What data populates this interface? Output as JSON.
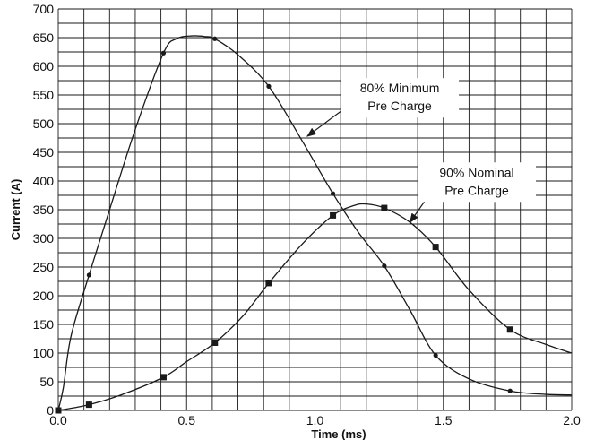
{
  "chart_data": {
    "type": "line",
    "title": "",
    "xlabel": "Time (ms)",
    "ylabel": "Current (A)",
    "xlim": [
      0,
      2.0
    ],
    "ylim": [
      0,
      700
    ],
    "x_ticks": [
      0.0,
      0.5,
      1.0,
      1.5,
      2.0
    ],
    "x_tick_labels": [
      "0.0",
      "0.5",
      "1.0",
      "1.5",
      "2.0"
    ],
    "y_ticks": [
      0,
      50,
      100,
      150,
      200,
      250,
      300,
      350,
      400,
      450,
      500,
      550,
      600,
      650,
      700
    ],
    "y_tick_labels": [
      "0",
      "50",
      "100",
      "150",
      "200",
      "250",
      "300",
      "350",
      "400",
      "450",
      "500",
      "550",
      "600",
      "650",
      "700"
    ],
    "grid": true,
    "series": [
      {
        "marker": "circle",
        "marker_points": {
          "x": [
            0.0,
            0.12,
            0.41,
            0.61,
            0.82,
            1.07,
            1.27,
            1.47,
            1.76
          ],
          "y": [
            0,
            236,
            623,
            648,
            565,
            378,
            252,
            96,
            34
          ]
        },
        "curve": {
          "x": [
            0.0,
            0.02,
            0.05,
            0.12,
            0.2,
            0.3,
            0.41,
            0.46,
            0.52,
            0.57,
            0.61,
            0.7,
            0.82,
            0.95,
            1.07,
            1.17,
            1.27,
            1.37,
            1.47,
            1.6,
            1.76,
            1.9,
            2.0
          ],
          "y": [
            0,
            40,
            130,
            236,
            350,
            490,
            623,
            648,
            653,
            652,
            648,
            620,
            565,
            470,
            378,
            310,
            252,
            175,
            96,
            55,
            34,
            28,
            27
          ]
        }
      },
      {
        "marker": "square",
        "marker_points": {
          "x": [
            0.0,
            0.12,
            0.41,
            0.61,
            0.82,
            1.07,
            1.27,
            1.47,
            1.76
          ],
          "y": [
            0,
            10,
            58,
            118,
            222,
            340,
            353,
            285,
            141
          ]
        },
        "curve": {
          "x": [
            0.0,
            0.12,
            0.25,
            0.41,
            0.5,
            0.61,
            0.72,
            0.82,
            0.95,
            1.07,
            1.15,
            1.2,
            1.27,
            1.37,
            1.47,
            1.6,
            1.76,
            1.9,
            2.0
          ],
          "y": [
            0,
            10,
            28,
            58,
            85,
            118,
            165,
            222,
            290,
            340,
            357,
            360,
            353,
            328,
            285,
            210,
            141,
            115,
            100
          ]
        }
      }
    ],
    "annotations": [
      {
        "lines": [
          "80% Minimum",
          "Pre Charge"
        ],
        "label_x": 1.33,
        "label_y": 545,
        "arrow_from": {
          "x": 1.18,
          "y": 548
        },
        "arrow_to": {
          "x": 0.97,
          "y": 478
        }
      },
      {
        "lines": [
          "90% Nominal",
          "Pre Charge"
        ],
        "label_x": 1.63,
        "label_y": 398,
        "arrow_from": {
          "x": 1.47,
          "y": 392
        },
        "arrow_to": {
          "x": 1.37,
          "y": 328
        }
      }
    ]
  }
}
